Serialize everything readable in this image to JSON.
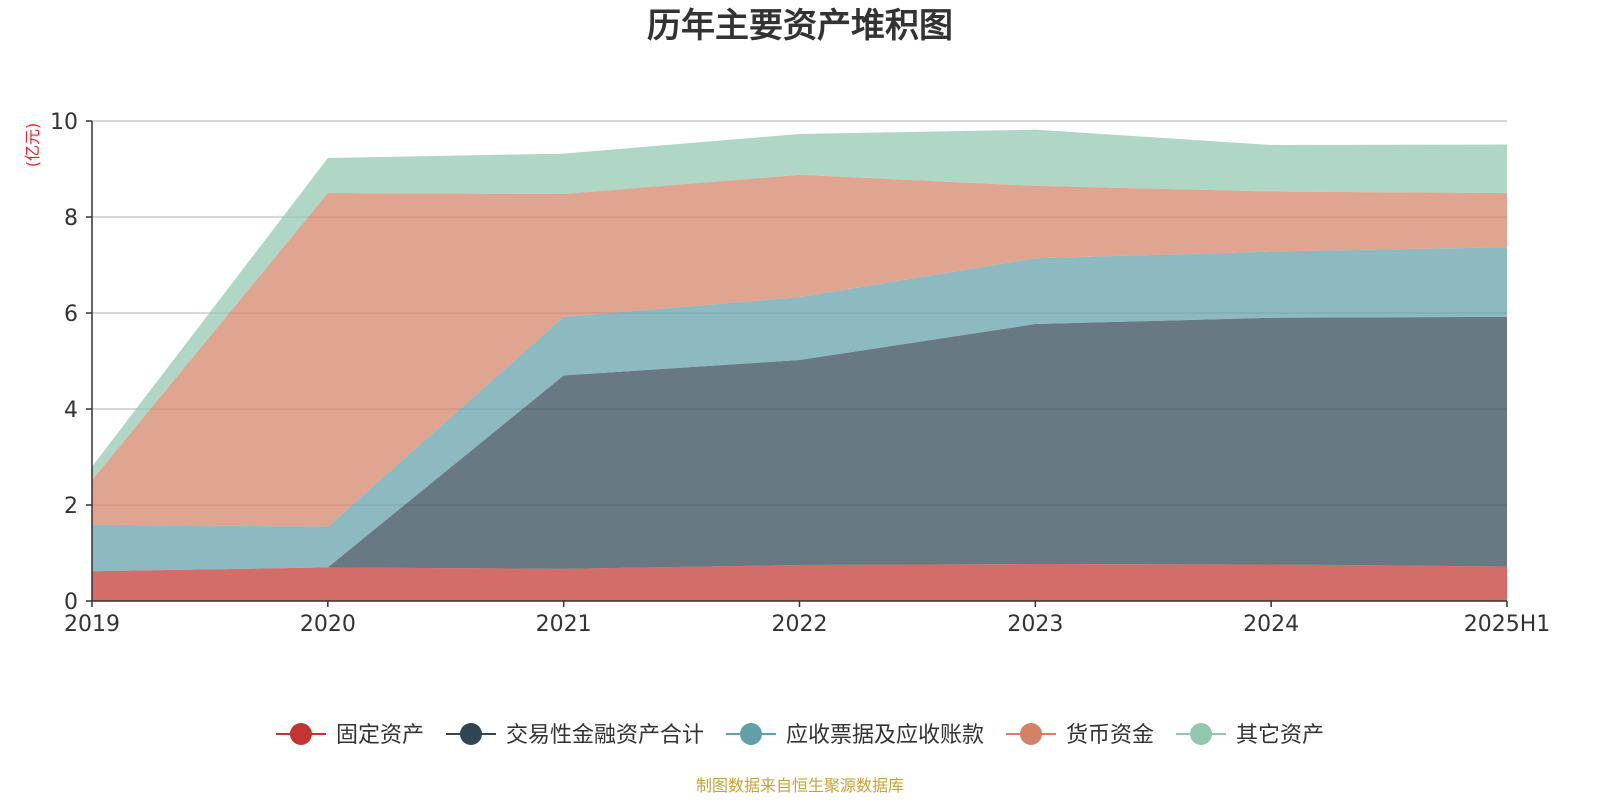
{
  "title": "历年主要资产堆积图",
  "source": "制图数据来自恒生聚源数据库",
  "colors": {
    "fixed": "#c23531",
    "trading": "#2f4554",
    "receivable": "#61a0a8",
    "cash": "#d48265",
    "other": "#91c7ae"
  },
  "chart_data": {
    "type": "area",
    "stacked": true,
    "unit": "(亿元)",
    "categories": [
      "2019",
      "2020",
      "2021",
      "2022",
      "2023",
      "2024",
      "2025H1"
    ],
    "ylim": [
      0,
      10
    ],
    "yticks": [
      "0",
      "2",
      "4",
      "6",
      "8",
      "10"
    ],
    "grid": true,
    "legend_position": "bottom",
    "series": [
      {
        "name": "固定资产",
        "key": "fixed",
        "values": [
          0.62,
          0.7,
          0.67,
          0.75,
          0.77,
          0.76,
          0.72
        ]
      },
      {
        "name": "交易性金融资产合计",
        "key": "trading",
        "values": [
          0.0,
          0.0,
          4.03,
          4.27,
          5.0,
          5.14,
          5.2
        ]
      },
      {
        "name": "应收票据及应收账款",
        "key": "receivable",
        "values": [
          0.97,
          0.85,
          1.22,
          1.31,
          1.37,
          1.38,
          1.45
        ]
      },
      {
        "name": "货币资金",
        "key": "cash",
        "values": [
          0.93,
          6.95,
          2.56,
          2.55,
          1.51,
          1.25,
          1.13
        ]
      },
      {
        "name": "其它资产",
        "key": "other",
        "values": [
          0.28,
          0.73,
          0.84,
          0.85,
          1.17,
          0.97,
          1.01
        ]
      }
    ]
  }
}
